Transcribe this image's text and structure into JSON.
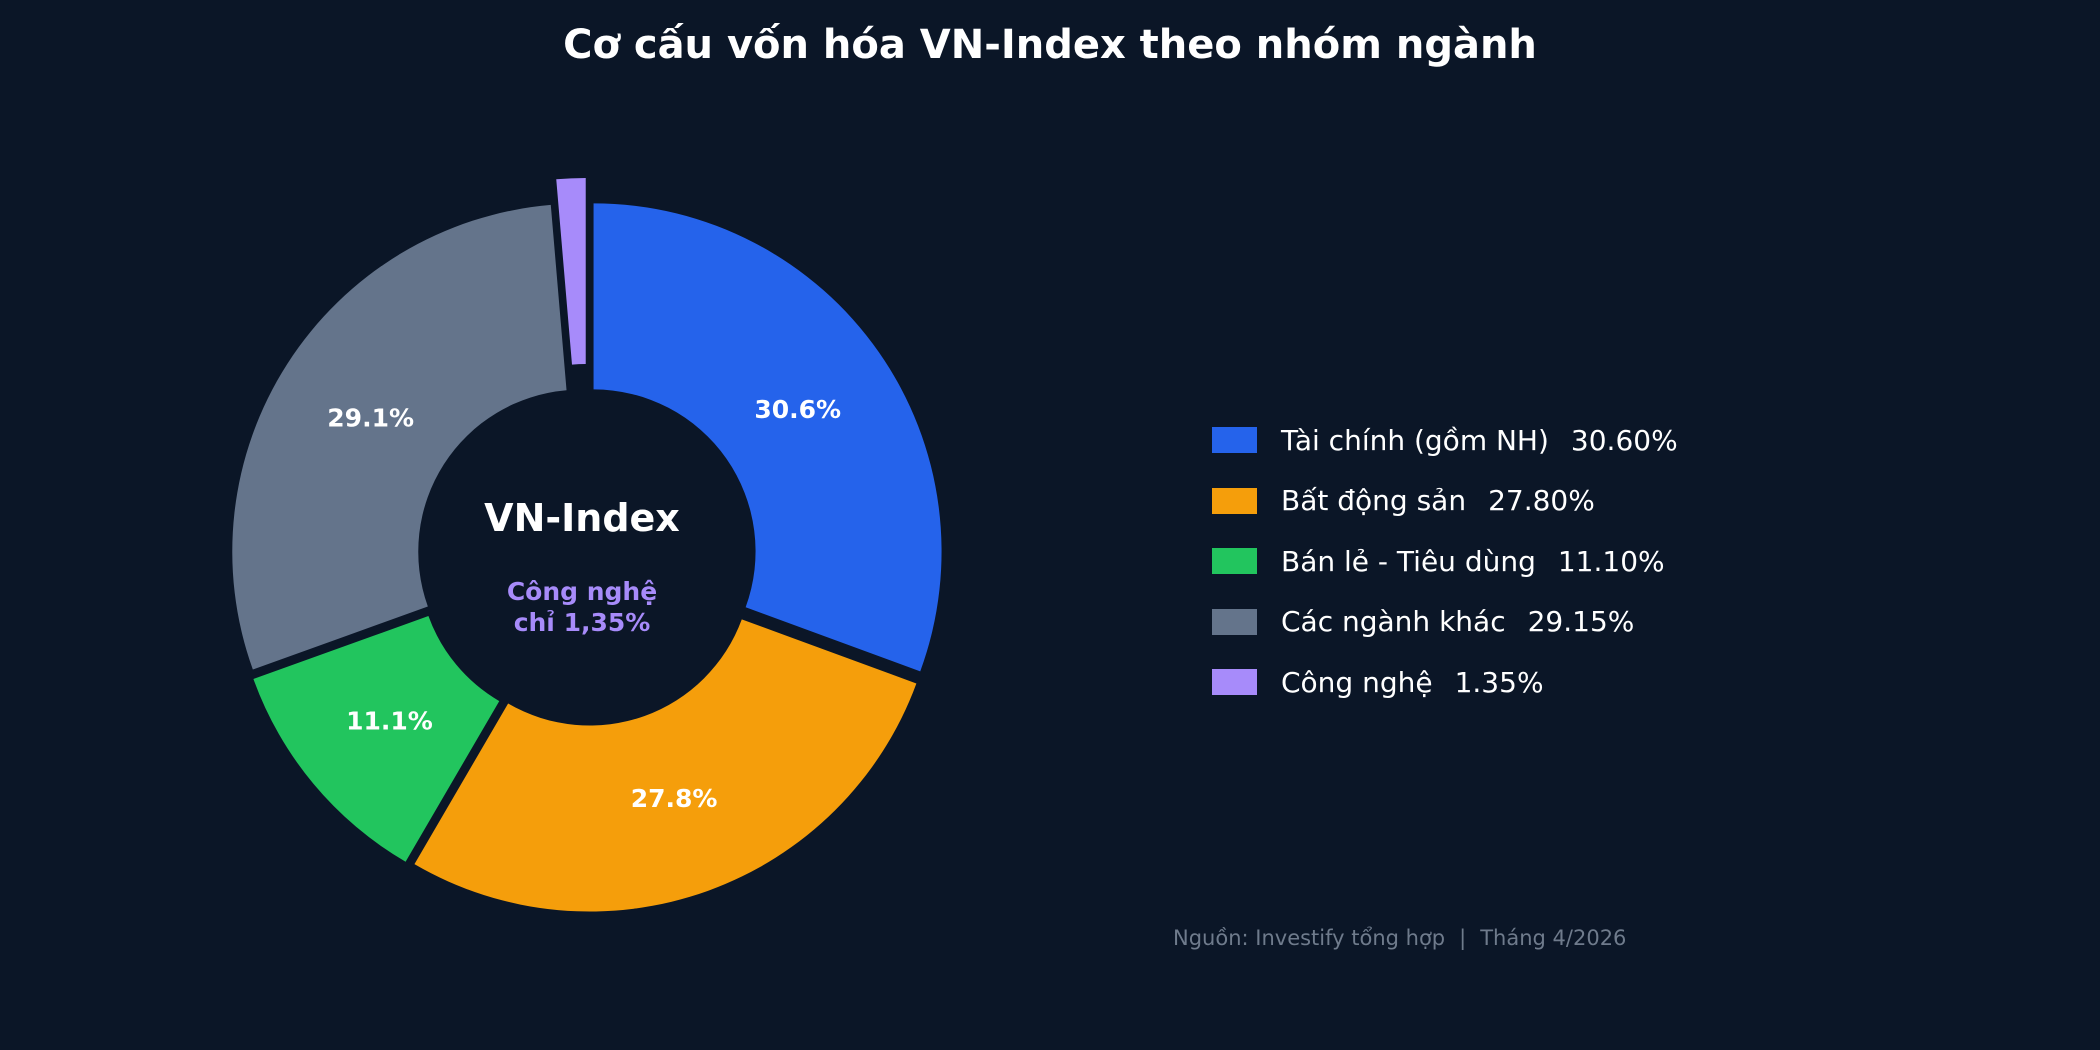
{
  "chart_data": {
    "type": "pie",
    "title": "Cơ cấu vốn hóa VN-Index theo nhóm ngành",
    "center_title": "VN-Index",
    "center_note_lines": [
      "Công nghệ",
      "chỉ 1,35%"
    ],
    "slices": [
      {
        "name": "Tài chính (gồm NH)",
        "value": 30.6,
        "label": "30.6%",
        "legend_value": "30.60%",
        "color": "#2563eb"
      },
      {
        "name": "Bất động sản",
        "value": 27.8,
        "label": "27.8%",
        "legend_value": "27.80%",
        "color": "#f59e0b"
      },
      {
        "name": "Bán lẻ - Tiêu dùng",
        "value": 11.1,
        "label": "11.1%",
        "legend_value": "11.10%",
        "color": "#22c55e"
      },
      {
        "name": "Các ngành khác",
        "value": 29.15,
        "label": "29.1%",
        "legend_value": "29.15%",
        "color": "#64748b"
      },
      {
        "name": "Công nghệ",
        "value": 1.35,
        "label": "",
        "legend_value": "1.35%",
        "color": "#a78bfa",
        "exploded": true
      }
    ],
    "legend_position": "right"
  },
  "source": {
    "text": "Nguồn: Investify tổng hợp",
    "separator": "|",
    "date": "Tháng 4/2026"
  },
  "colors": {
    "background": "#0b1627",
    "center_note": "#a78bfa",
    "source_text": "#6f7b8c"
  }
}
